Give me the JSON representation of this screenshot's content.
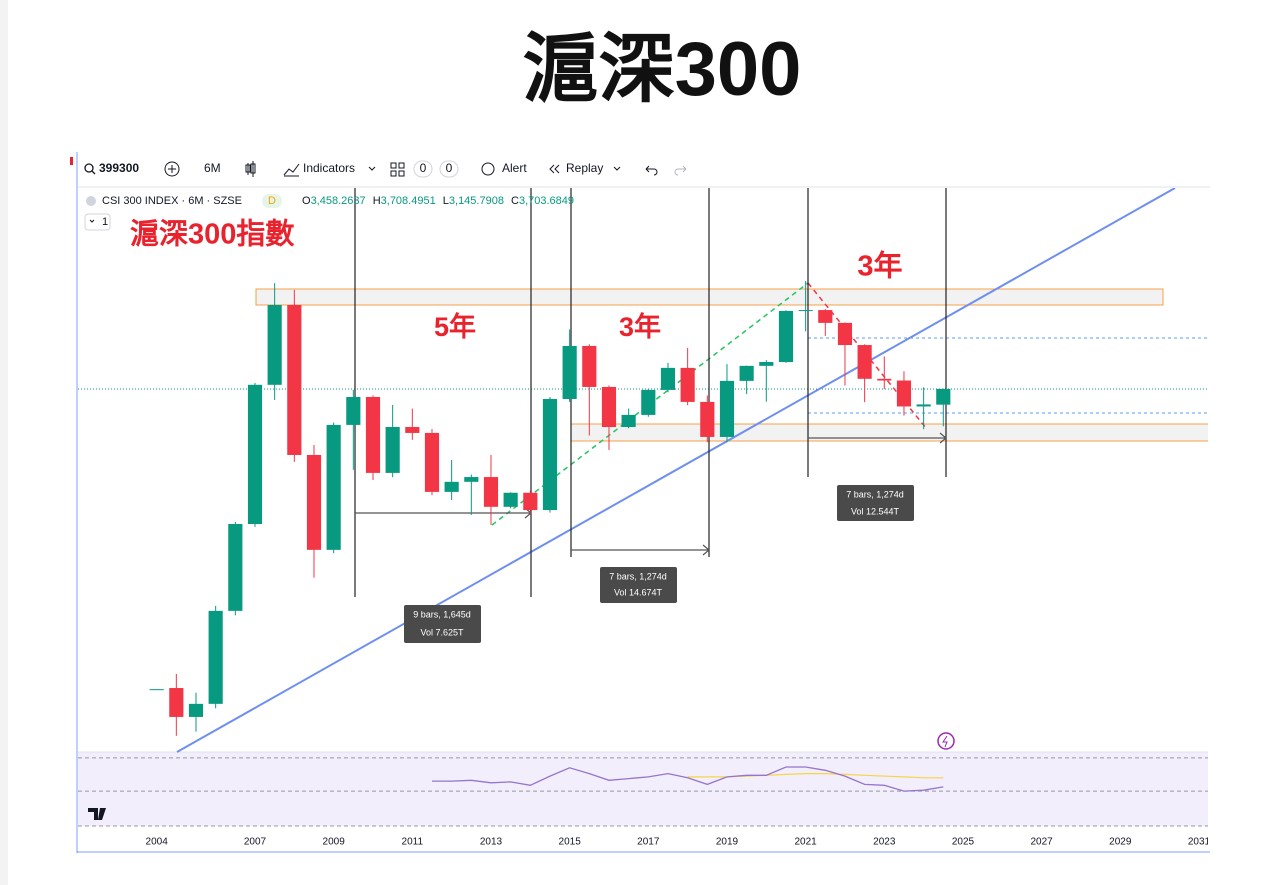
{
  "page_title": "滬深300",
  "toolbar": {
    "symbol": "399300",
    "interval": "6M",
    "indicators": "Indicators",
    "count_a": "0",
    "count_b": "0",
    "alert": "Alert",
    "replay": "Replay"
  },
  "legend": {
    "name": "CSI 300 INDEX · 6M · SZSE",
    "badge": "D",
    "keys": [
      "O",
      "H",
      "L",
      "C"
    ],
    "pane_button": "1"
  },
  "chart_data": {
    "type": "candlestick",
    "title": "滬深300指數",
    "annotations": [
      "5年",
      "3年",
      "3年"
    ],
    "measures": [
      {
        "bars": "9 bars, 1,645d",
        "vol": "Vol 7.625T"
      },
      {
        "bars": "7 bars, 1,274d",
        "vol": "Vol 14.674T"
      },
      {
        "bars": "7 bars, 1,274d",
        "vol": "Vol 12.544T"
      }
    ],
    "x": [
      2004.5,
      2005,
      2005.5,
      2006,
      2006.5,
      2007,
      2007.5,
      2008,
      2008.5,
      2009,
      2009.5,
      2010,
      2010.5,
      2011,
      2011.5,
      2012,
      2012.5,
      2013,
      2013.5,
      2014,
      2014.5,
      2015,
      2015.5,
      2016,
      2016.5,
      2017,
      2017.5,
      2018,
      2018.5,
      2019,
      2019.5,
      2020,
      2020.5,
      2021,
      2021.5,
      2022,
      2022.5,
      2023,
      2023.5,
      2024,
      2024.5
    ],
    "open": [
      1000,
      1005,
      886,
      938,
      1407,
      2055,
      3771,
      5341,
      2777,
      1836,
      3166,
      3576,
      2568,
      3137,
      3057,
      2364,
      2470,
      2522,
      2215,
      2355,
      2184,
      3545,
      4467,
      3736,
      3137,
      3307,
      3688,
      4060,
      3500,
      3004,
      3836,
      4096,
      4165,
      5204,
      5224,
      4940,
      4485,
      3871,
      3842,
      3431,
      3458.2637
    ],
    "high": [
      1000,
      1069,
      985,
      1438,
      2074,
      3800,
      5877,
      5704,
      2900,
      3200,
      3690,
      3600,
      3453,
      3400,
      3110,
      2717,
      2550,
      2777,
      2360,
      2380,
      3575,
      4800,
      4500,
      3760,
      3400,
      3700,
      4150,
      4430,
      3600,
      4127,
      4100,
      4200,
      5220,
      5930,
      5250,
      4950,
      4500,
      4268,
      4000,
      3730,
      3708.4951
    ],
    "low": [
      1000,
      816,
      831,
      920,
      1380,
      2030,
      3530,
      2694,
      1626,
      1810,
      2603,
      2490,
      2520,
      2966,
      2330,
      2282,
      2138,
      2047,
      2200,
      2150,
      2160,
      3500,
      3023,
      2838,
      3120,
      3280,
      3650,
      3450,
      2936,
      2935,
      3620,
      3503,
      4150,
      4762,
      4667,
      3758,
      3495,
      3700,
      3297,
      3108,
      3145.7908
    ],
    "close": [
      1000,
      886,
      938,
      1407,
      2055,
      3771,
      5341,
      2777,
      1836,
      3166,
      3576,
      2568,
      3137,
      3057,
      2364,
      2470,
      2522,
      2215,
      2355,
      2184,
      3545,
      4467,
      3736,
      3137,
      3307,
      3688,
      4060,
      3500,
      3004,
      3836,
      4096,
      4165,
      5204,
      5224,
      4940,
      4485,
      3871,
      3842,
      3431,
      3462,
      3703.6849
    ],
    "last_bar_labels": {
      "open": "3,458.2637",
      "high": "3,708.4951",
      "low": "3,145.7908",
      "close": "3,703.6849"
    },
    "up_color": "#089981",
    "down_color": "#f23645",
    "log_scale": true,
    "ylim": [
      767,
      8896
    ],
    "xlim": [
      2002.5,
      2031.23
    ],
    "xticks": [
      {
        "value": 2004.5,
        "label": "2004"
      },
      2007,
      2009,
      2011,
      2013,
      2015,
      2017,
      2019,
      2021,
      2023,
      2025,
      2027,
      2029,
      2031
    ],
    "rsi": {
      "values": [
        null,
        null,
        null,
        null,
        null,
        null,
        null,
        null,
        null,
        null,
        null,
        null,
        null,
        null,
        42,
        42,
        43,
        40,
        41,
        37,
        48,
        58,
        51,
        43,
        45,
        47,
        51,
        46,
        38,
        47,
        49,
        49,
        59,
        59,
        55,
        48,
        38,
        37,
        30,
        31,
        35
      ],
      "ma": [
        null,
        null,
        null,
        null,
        null,
        null,
        null,
        null,
        null,
        null,
        null,
        null,
        null,
        null,
        null,
        null,
        null,
        null,
        null,
        null,
        null,
        null,
        null,
        null,
        null,
        null,
        null,
        47,
        47,
        47,
        48,
        49,
        50,
        51,
        51,
        50,
        49,
        48,
        47,
        46,
        46
      ],
      "color": "#9575cd",
      "ma_color": "#f5d547",
      "ylim": [
        -12,
        77
      ],
      "levels": [
        70,
        30
      ]
    }
  }
}
